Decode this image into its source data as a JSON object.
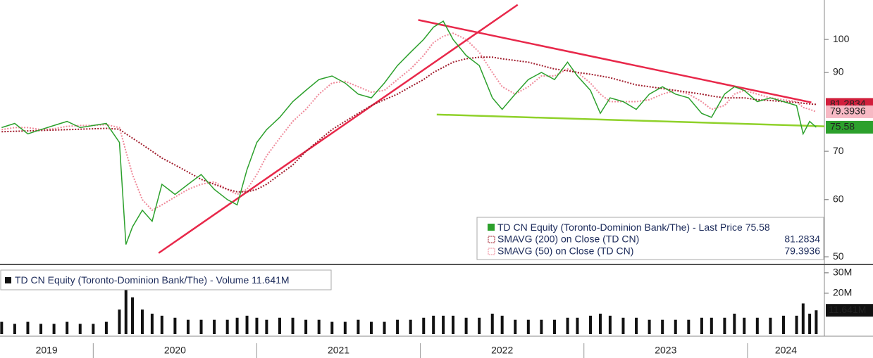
{
  "chart_data": {
    "type": "line",
    "scale": "log",
    "x": [
      2019.44,
      2019.52,
      2019.6,
      2019.68,
      2019.76,
      2019.84,
      2019.92,
      2020.0,
      2020.08,
      2020.16,
      2020.2,
      2020.24,
      2020.3,
      2020.36,
      2020.42,
      2020.5,
      2020.58,
      2020.66,
      2020.74,
      2020.82,
      2020.88,
      2020.94,
      2021.0,
      2021.06,
      2021.14,
      2021.22,
      2021.3,
      2021.38,
      2021.46,
      2021.54,
      2021.62,
      2021.7,
      2021.78,
      2021.86,
      2021.94,
      2022.02,
      2022.08,
      2022.14,
      2022.2,
      2022.28,
      2022.36,
      2022.44,
      2022.5,
      2022.58,
      2022.66,
      2022.74,
      2022.82,
      2022.9,
      2022.96,
      2023.04,
      2023.1,
      2023.16,
      2023.24,
      2023.32,
      2023.4,
      2023.48,
      2023.56,
      2023.64,
      2023.72,
      2023.78,
      2023.86,
      2023.92,
      2023.98,
      2024.06,
      2024.14,
      2024.22,
      2024.3,
      2024.34,
      2024.38,
      2024.42
    ],
    "series": [
      {
        "name": "TD CN Equity (Toronto-Dominion Bank/The) - Last Price",
        "color": "#2ca02c",
        "style": "solid",
        "values": [
          75.5,
          76.5,
          74,
          75,
          76,
          77,
          75.5,
          76,
          76.5,
          72,
          52,
          55,
          58,
          56,
          63,
          61,
          63,
          65,
          62,
          60,
          59,
          66,
          72,
          75,
          78,
          82,
          85,
          88,
          89,
          87,
          84,
          83,
          87,
          92,
          96,
          100,
          104,
          106,
          100,
          95,
          92,
          83,
          80,
          84,
          88,
          90,
          88,
          93,
          89,
          85,
          79,
          83,
          82,
          80,
          84,
          86,
          84,
          83,
          79,
          78,
          84,
          86,
          85,
          82,
          83,
          82,
          81,
          74,
          77,
          75.58
        ]
      },
      {
        "name": "SMAVG (200)  on Close (TD CN)",
        "color": "#a01c2c",
        "style": "dotted",
        "values": [
          74.5,
          74.6,
          74.7,
          74.8,
          74.9,
          75,
          75.1,
          75.2,
          75.3,
          75.1,
          74,
          73,
          71.5,
          70,
          68.5,
          67,
          65.5,
          64,
          63,
          62,
          61.5,
          61.5,
          62,
          63,
          65,
          67,
          70,
          72.5,
          75,
          77,
          79,
          81,
          82.5,
          84,
          86,
          88,
          90,
          91.5,
          93,
          94,
          94.5,
          94.5,
          94,
          93.5,
          93,
          92,
          91,
          90.5,
          90,
          89.5,
          89,
          88.5,
          87.5,
          86.5,
          86,
          85.5,
          85,
          84.5,
          84,
          83.5,
          83,
          83,
          83,
          82.5,
          82.3,
          82,
          81.8,
          81.6,
          81.4,
          81.2834
        ]
      },
      {
        "name": "SMAVG (50)  on Close (TD CN)",
        "color": "#ef8a9a",
        "style": "dotted",
        "values": [
          75,
          75.5,
          75.5,
          75,
          75.2,
          75.8,
          76,
          76,
          76.2,
          75.5,
          70,
          65,
          60,
          58,
          59,
          60.5,
          62,
          63,
          63.5,
          62,
          61,
          62,
          65,
          69,
          73,
          77,
          80,
          84,
          87,
          87.5,
          86,
          84.5,
          85,
          88,
          91,
          95,
          99,
          101,
          102,
          100,
          96,
          90,
          86,
          84,
          86,
          89,
          89,
          91,
          90,
          87,
          84,
          82,
          82,
          82,
          82.5,
          84,
          85,
          84,
          82,
          80,
          81,
          84,
          85,
          84,
          83,
          82.5,
          82,
          80.5,
          80,
          79.3936
        ]
      }
    ],
    "volume": {
      "name": "TD CN Equity (Toronto-Dominion Bank/The) - Volume",
      "color": "#111111",
      "values": [
        6,
        5,
        6,
        5,
        5,
        6,
        5,
        5,
        6,
        12,
        22,
        18,
        12,
        10,
        9,
        8,
        7,
        7,
        7,
        7,
        8,
        9,
        8,
        7,
        8,
        8,
        7,
        7,
        6,
        6,
        7,
        6,
        6,
        7,
        7,
        8,
        9,
        9,
        9,
        8,
        8,
        10,
        9,
        7,
        7,
        7,
        7,
        8,
        8,
        9,
        10,
        9,
        8,
        8,
        7,
        7,
        7,
        7,
        8,
        8,
        8,
        10,
        8,
        8,
        8,
        9,
        9,
        15,
        10,
        11.641
      ],
      "last_label": "11.641M",
      "ylim": [
        0,
        33.4
      ],
      "yticks": [
        {
          "value": 30,
          "label": "30M"
        },
        {
          "value": 20,
          "label": "20M"
        }
      ]
    },
    "trendlines": [
      {
        "color": "#e8284a",
        "x": [
          2020.4,
          2022.595
        ],
        "y": [
          50.6,
          111.7
        ]
      },
      {
        "color": "#e8284a",
        "x": [
          2021.987,
          2024.39
        ],
        "y": [
          106.4,
          81.8
        ]
      },
      {
        "color": "#8fd12a",
        "x": [
          2022.1,
          2024.47
        ],
        "y": [
          78.7,
          75.8
        ]
      }
    ],
    "xlim": [
      2019.43,
      2024.47
    ],
    "xticks": [
      2020,
      2021,
      2022,
      2023,
      2024
    ],
    "x_labels": [
      "2019",
      "2020",
      "2021",
      "2022",
      "2023",
      "2024"
    ],
    "ylim": [
      48.9,
      113.4
    ],
    "yticks": [
      50,
      60,
      70,
      90,
      100
    ]
  }
}
